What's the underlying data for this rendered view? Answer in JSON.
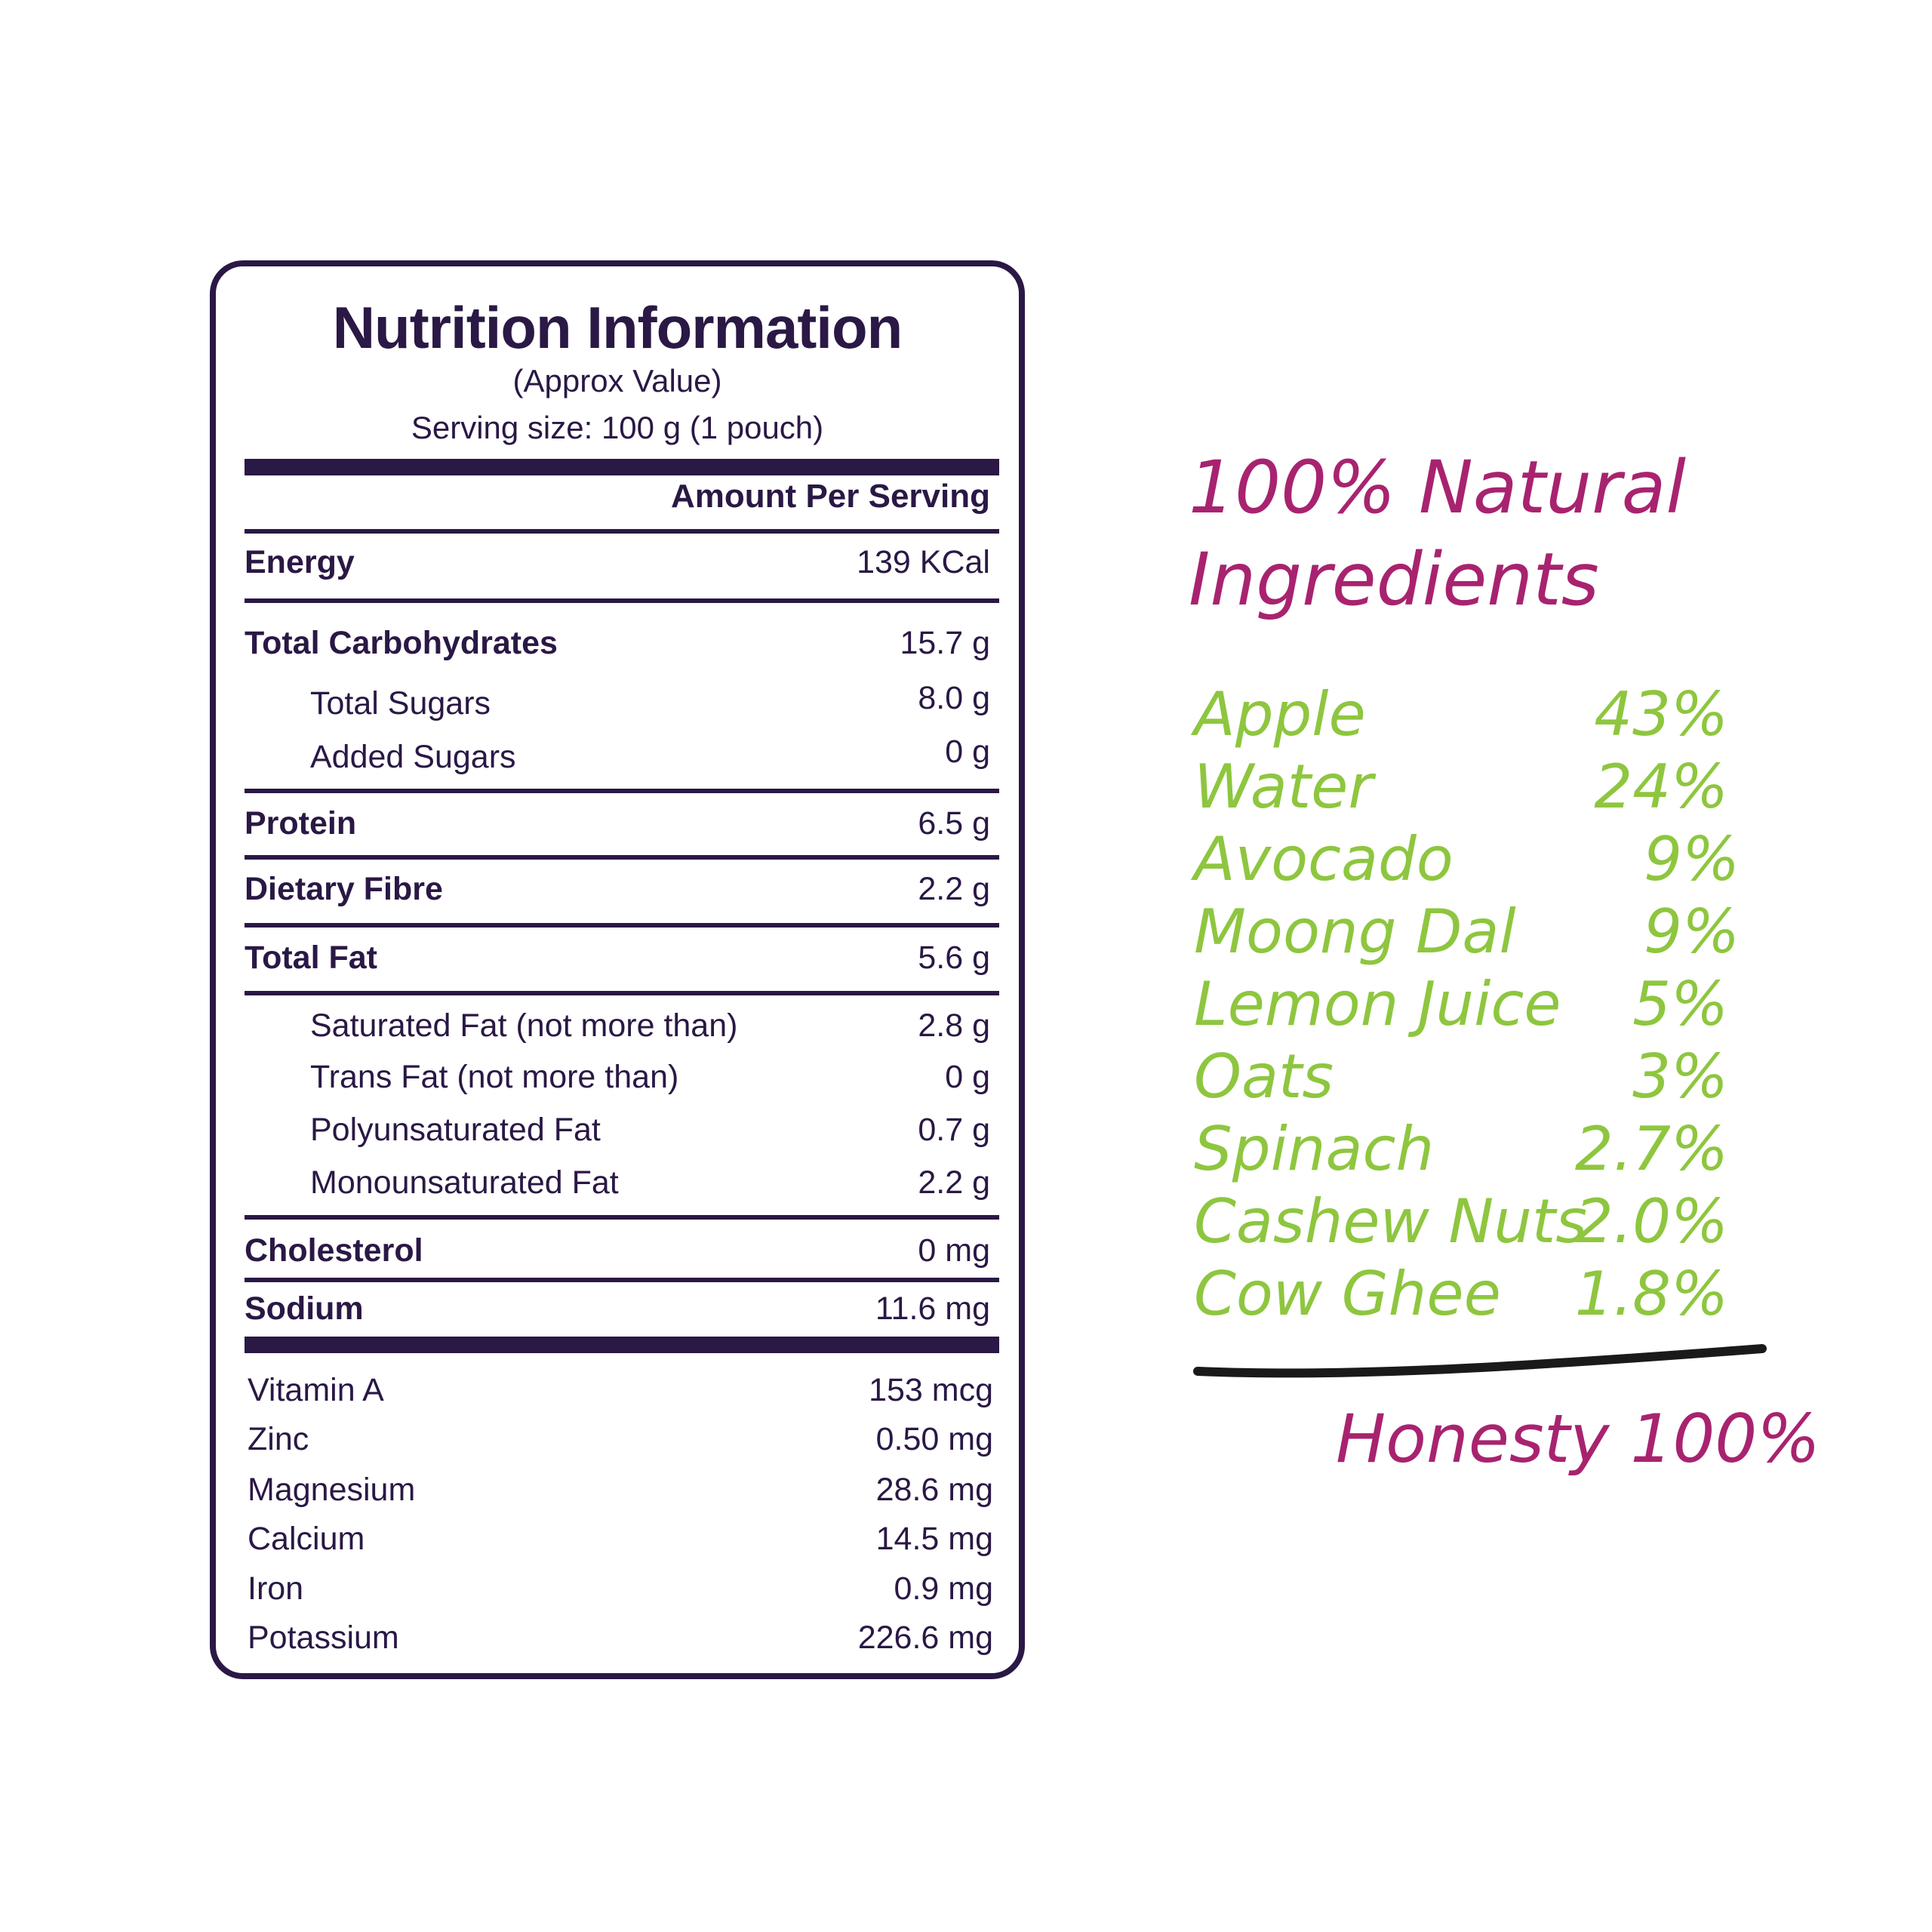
{
  "nutrition": {
    "title": "Nutrition Information",
    "approx": "(Approx Value)",
    "serving_size": "Serving size: 100 g (1 pouch)",
    "amount_per_serving": "Amount Per Serving",
    "rows": [
      {
        "label": "Energy",
        "value": "139 KCal"
      },
      {
        "label": "Total Carbohydrates",
        "value": "15.7 g"
      },
      {
        "label": "Total Sugars",
        "value": "8.0 g"
      },
      {
        "label": "Added Sugars",
        "value": "0 g"
      },
      {
        "label": "Protein",
        "value": "6.5 g"
      },
      {
        "label": "Dietary Fibre",
        "value": "2.2 g"
      },
      {
        "label": "Total Fat",
        "value": "5.6 g"
      },
      {
        "label": "Saturated Fat (not more than)",
        "value": "2.8 g"
      },
      {
        "label": "Trans Fat (not more than)",
        "value": "0 g"
      },
      {
        "label": "Polyunsaturated Fat",
        "value": "0.7 g"
      },
      {
        "label": "Monounsaturated Fat",
        "value": "2.2 g"
      },
      {
        "label": "Cholesterol",
        "value": "0 mg"
      },
      {
        "label": "Sodium",
        "value": "11.6 mg"
      },
      {
        "label": "Vitamin A",
        "value": "153 mcg"
      },
      {
        "label": "Zinc",
        "value": "0.50 mg"
      },
      {
        "label": "Magnesium",
        "value": "28.6 mg"
      },
      {
        "label": "Calcium",
        "value": "14.5 mg"
      },
      {
        "label": "Iron",
        "value": "0.9 mg"
      },
      {
        "label": "Potassium",
        "value": "226.6 mg"
      }
    ]
  },
  "ingredients": {
    "title_line1": "100% Natural",
    "title_line2": "Ingredients",
    "items": [
      {
        "name": "Apple",
        "pct": "43%"
      },
      {
        "name": "Water",
        "pct": "24%"
      },
      {
        "name": "Avocado",
        "pct": "9%"
      },
      {
        "name": "Moong Dal",
        "pct": "9%"
      },
      {
        "name": "Lemon Juice",
        "pct": "5%"
      },
      {
        "name": "Oats",
        "pct": "3%"
      },
      {
        "name": "Spinach",
        "pct": "2.7%"
      },
      {
        "name": "Cashew Nuts",
        "pct": "2.0%"
      },
      {
        "name": "Cow Ghee",
        "pct": "1.8%"
      }
    ],
    "honesty": "Honesty 100%"
  },
  "colors": {
    "label_ink": "#2a1845",
    "magenta": "#a8236f",
    "green": "#8ec63f"
  }
}
